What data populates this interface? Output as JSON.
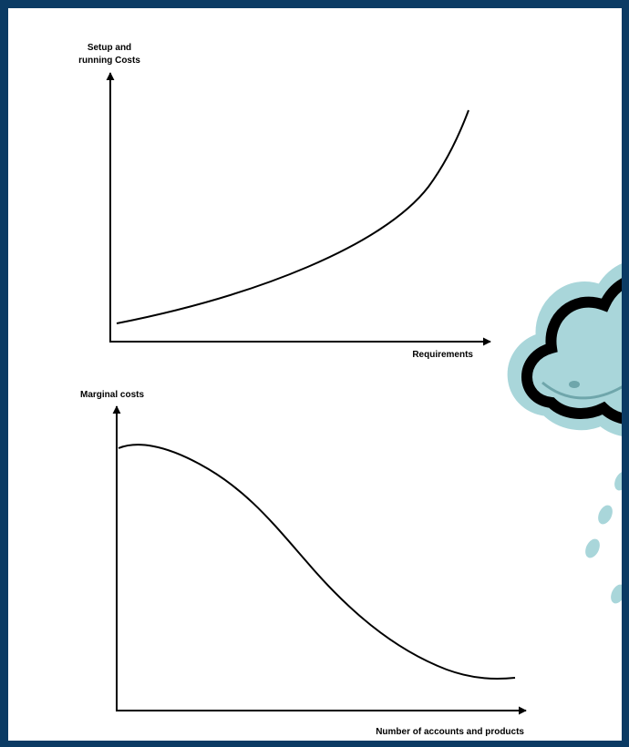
{
  "charts": [
    {
      "y_label": [
        "Setup and",
        "running Costs"
      ],
      "x_label": "Requirements"
    },
    {
      "y_label": [
        "Marginal costs"
      ],
      "x_label": "Number of accounts and products"
    }
  ]
}
